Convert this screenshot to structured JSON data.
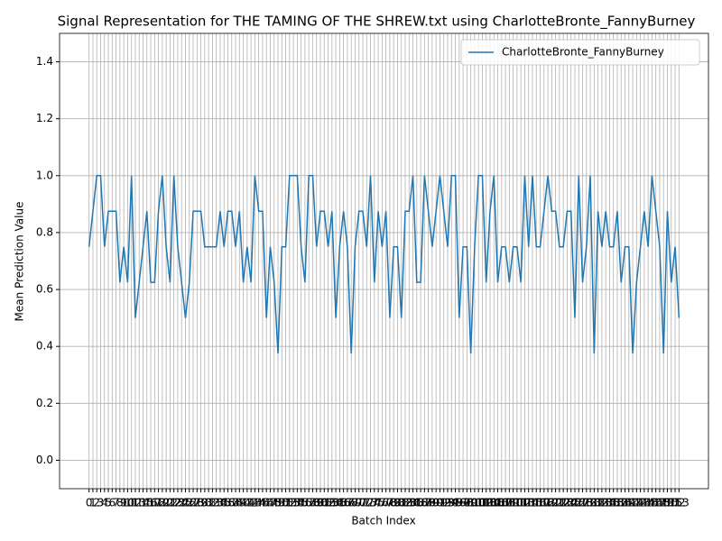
{
  "chart_data": {
    "type": "line",
    "title": "Signal Representation for THE TAMING OF THE SHREW.txt using CharlotteBronte_FannyBurney",
    "xlabel": "Batch Index",
    "ylabel": "Mean Prediction Value",
    "x": [
      0,
      1,
      2,
      3,
      4,
      5,
      6,
      7,
      8,
      9,
      10,
      11,
      12,
      13,
      14,
      15,
      16,
      17,
      18,
      19,
      20,
      21,
      22,
      23,
      24,
      25,
      26,
      27,
      28,
      29,
      30,
      31,
      32,
      33,
      34,
      35,
      36,
      37,
      38,
      39,
      40,
      41,
      42,
      43,
      44,
      45,
      46,
      47,
      48,
      49,
      50,
      51,
      52,
      53,
      54,
      55,
      56,
      57,
      58,
      59,
      60,
      61,
      62,
      63,
      64,
      65,
      66,
      67,
      68,
      69,
      70,
      71,
      72,
      73,
      74,
      75,
      76,
      77,
      78,
      79,
      80,
      81,
      82,
      83,
      84,
      85,
      86,
      87,
      88,
      89,
      90,
      91,
      92,
      93,
      94,
      95,
      96,
      97,
      98,
      99,
      100,
      101,
      102,
      103,
      104,
      105,
      106,
      107,
      108,
      109,
      110,
      111,
      112,
      113,
      114,
      115,
      116,
      117,
      118,
      119,
      120,
      121,
      122,
      123,
      124,
      125,
      126,
      127,
      128,
      129,
      130,
      131,
      132,
      133,
      134,
      135,
      136,
      137,
      138,
      139,
      140,
      141,
      142,
      143,
      144,
      145,
      146,
      147,
      148,
      149,
      150,
      151,
      152,
      153
    ],
    "series": [
      {
        "name": "CharlotteBronte_FannyBurney",
        "color": "#1f77b4",
        "values": [
          0.75,
          0.875,
          1,
          1,
          0.75,
          0.875,
          0.875,
          0.875,
          0.625,
          0.75,
          0.625,
          1,
          0.5,
          0.625,
          0.75,
          0.875,
          0.625,
          0.625,
          0.875,
          1,
          0.75,
          0.625,
          1,
          0.75,
          0.625,
          0.5,
          0.625,
          0.875,
          0.875,
          0.875,
          0.75,
          0.75,
          0.75,
          0.75,
          0.875,
          0.75,
          0.875,
          0.875,
          0.75,
          0.875,
          0.625,
          0.75,
          0.625,
          1,
          0.875,
          0.875,
          0.5,
          0.75,
          0.625,
          0.375,
          0.75,
          0.75,
          1,
          1,
          1,
          0.75,
          0.625,
          1,
          1,
          0.75,
          0.875,
          0.875,
          0.75,
          0.875,
          0.5,
          0.75,
          0.875,
          0.75,
          0.375,
          0.75,
          0.875,
          0.875,
          0.75,
          1,
          0.625,
          0.875,
          0.75,
          0.875,
          0.5,
          0.75,
          0.75,
          0.5,
          0.875,
          0.875,
          1,
          0.625,
          0.625,
          1,
          0.875,
          0.75,
          0.875,
          1,
          0.875,
          0.75,
          1,
          1,
          0.5,
          0.75,
          0.75,
          0.375,
          0.75,
          1,
          1,
          0.625,
          0.875,
          1,
          0.625,
          0.75,
          0.75,
          0.625,
          0.75,
          0.75,
          0.625,
          1,
          0.75,
          1,
          0.75,
          0.75,
          0.875,
          1,
          0.875,
          0.875,
          0.75,
          0.75,
          0.875,
          0.875,
          0.5,
          1,
          0.625,
          0.75,
          1,
          0.375,
          0.875,
          0.75,
          0.875,
          0.75,
          0.75,
          0.875,
          0.625,
          0.75,
          0.75,
          0.375,
          0.625,
          0.75,
          0.875,
          0.75,
          1,
          0.875,
          0.75,
          0.375,
          0.875,
          0.625,
          0.75,
          0.5
        ]
      }
    ],
    "xlim": [
      -7.65,
      160.65
    ],
    "ylim": [
      -0.1,
      1.5
    ],
    "yticks": [
      {
        "value": 0,
        "label": "0.0"
      },
      0.2,
      0.4,
      0.6,
      0.8,
      {
        "value": 1,
        "label": "1.0"
      },
      1.2,
      1.4
    ],
    "grid": true,
    "legend": "upper right"
  }
}
